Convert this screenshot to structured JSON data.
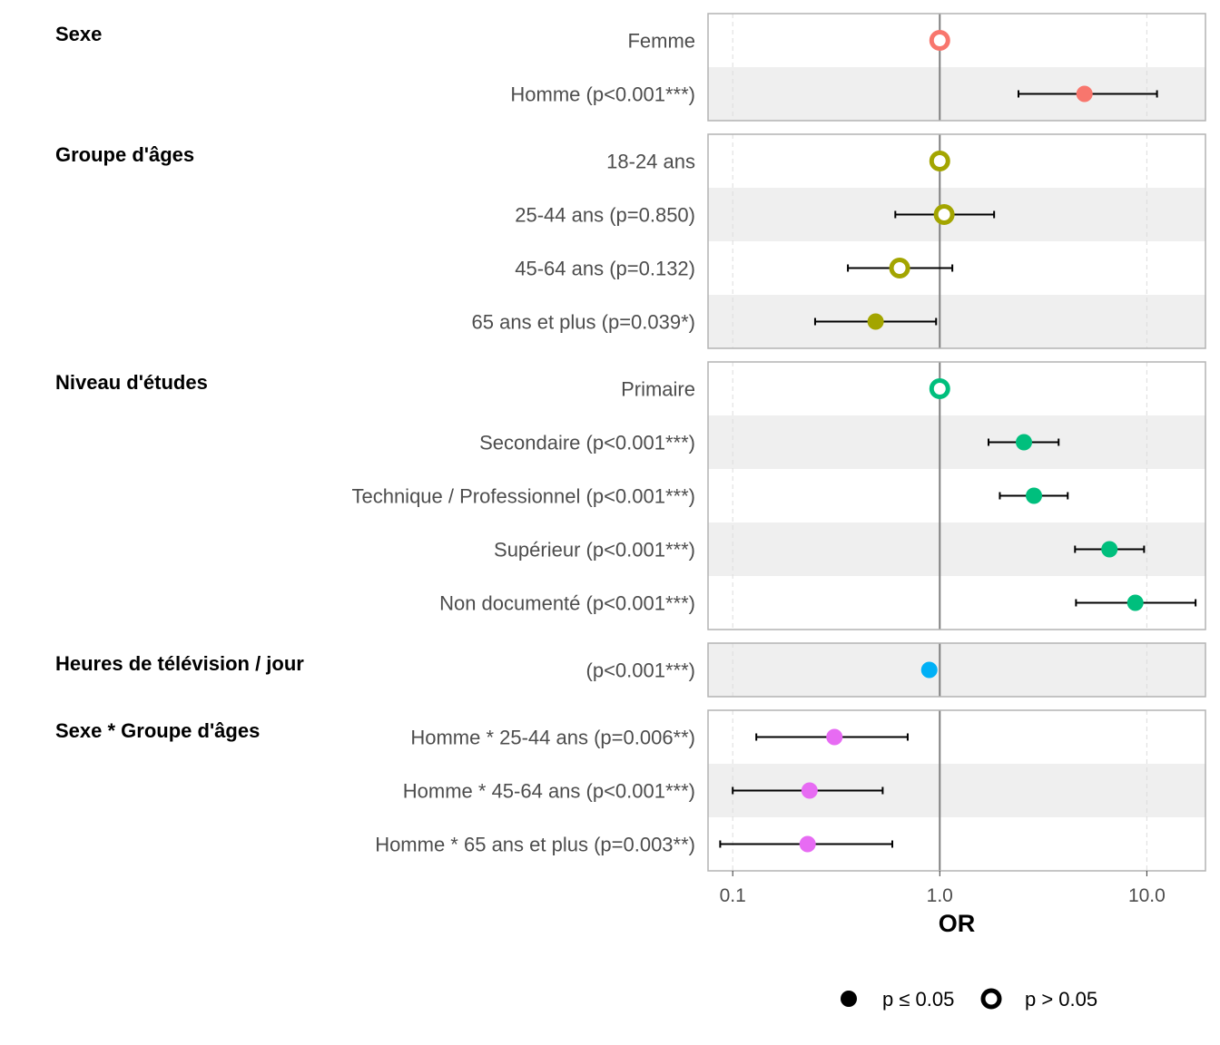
{
  "chart_data": {
    "type": "forest",
    "xlabel": "OR",
    "x_scale": "log10",
    "xlim": [
      0.076,
      19.2
    ],
    "xticks": [
      0.1,
      1.0,
      10.0
    ],
    "xtick_labels": [
      "0.1",
      "1.0",
      "10.0"
    ],
    "reference_line": 1.0,
    "grid": true,
    "alternating_row_shading": true,
    "legend": {
      "position": "bottom",
      "items": [
        {
          "label": "p ≤ 0.05",
          "shape": "filled-circle"
        },
        {
          "label": "p > 0.05",
          "shape": "open-circle"
        }
      ]
    },
    "groups": [
      {
        "title": "Sexe",
        "color": "#F8766D",
        "rows": [
          {
            "label": "Femme",
            "or": 1.0,
            "ci": null,
            "significant": false
          },
          {
            "label": "Homme (p<0.001***)",
            "or": 5.0,
            "ci": [
              2.4,
              11.2
            ],
            "significant": true
          }
        ]
      },
      {
        "title": "Groupe d'âges",
        "color": "#A3A500",
        "rows": [
          {
            "label": "18-24 ans",
            "or": 1.0,
            "ci": null,
            "significant": false
          },
          {
            "label": "25-44 ans (p=0.850)",
            "or": 1.05,
            "ci": [
              0.61,
              1.83
            ],
            "significant": false
          },
          {
            "label": "45-64 ans (p=0.132)",
            "or": 0.64,
            "ci": [
              0.36,
              1.15
            ],
            "significant": false
          },
          {
            "label": "65 ans et plus (p=0.039*)",
            "or": 0.49,
            "ci": [
              0.25,
              0.96
            ],
            "significant": true
          }
        ]
      },
      {
        "title": "Niveau d'études",
        "color": "#00BF7D",
        "rows": [
          {
            "label": "Primaire",
            "or": 1.0,
            "ci": null,
            "significant": false
          },
          {
            "label": "Secondaire (p<0.001***)",
            "or": 2.55,
            "ci": [
              1.72,
              3.75
            ],
            "significant": true
          },
          {
            "label": "Technique / Professionnel (p<0.001***)",
            "or": 2.85,
            "ci": [
              1.95,
              4.15
            ],
            "significant": true
          },
          {
            "label": "Supérieur (p<0.001***)",
            "or": 6.6,
            "ci": [
              4.5,
              9.7
            ],
            "significant": true
          },
          {
            "label": "Non documenté (p<0.001***)",
            "or": 8.8,
            "ci": [
              4.55,
              17.2
            ],
            "significant": true
          }
        ]
      },
      {
        "title": "Heures de télévision / jour",
        "color": "#00B0F6",
        "rows": [
          {
            "label": "(p<0.001***)",
            "or": 0.89,
            "ci": [
              0.86,
              0.92
            ],
            "significant": true
          }
        ]
      },
      {
        "title": "Sexe * Groupe d'âges",
        "color": "#E76BF3",
        "rows": [
          {
            "label": "Homme * 25-44 ans (p=0.006**)",
            "or": 0.31,
            "ci": [
              0.13,
              0.7
            ],
            "significant": true
          },
          {
            "label": "Homme * 45-64 ans (p<0.001***)",
            "or": 0.235,
            "ci": [
              0.1,
              0.53
            ],
            "significant": true
          },
          {
            "label": "Homme * 65 ans et plus (p=0.003**)",
            "or": 0.23,
            "ci": [
              0.087,
              0.59
            ],
            "significant": true
          }
        ]
      }
    ]
  }
}
